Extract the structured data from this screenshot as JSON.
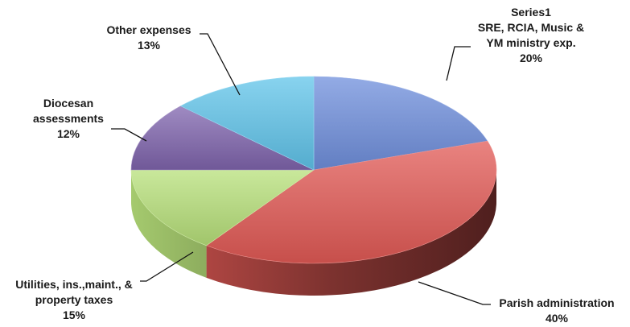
{
  "chart_data": {
    "type": "pie",
    "title": "",
    "legend": "none",
    "categories": [
      "SRE, RCIA, Music & YM ministry exp.",
      "Parish administration",
      "Utilities, ins.,maint., & property taxes",
      "Diocesan assessments",
      "Other expenses"
    ],
    "series": [
      {
        "name": "Series1",
        "values": [
          20,
          40,
          15,
          12,
          13
        ],
        "percent_labels": [
          "20%",
          "40%",
          "15%",
          "12%",
          "13%"
        ]
      }
    ],
    "colors": [
      "#6f8fdc",
      "#e25a55",
      "#b7e07a",
      "#7f64ad",
      "#60c4ea"
    ],
    "labels": [
      {
        "lines": [
          "Series1",
          "SRE, RCIA, Music &",
          "YM ministry exp."
        ],
        "pct": "20%"
      },
      {
        "lines": [
          "Parish administration"
        ],
        "pct": "40%"
      },
      {
        "lines": [
          "Utilities, ins.,maint., &",
          "property taxes"
        ],
        "pct": "15%"
      },
      {
        "lines": [
          "Diocesan",
          "assessments"
        ],
        "pct": "12%"
      },
      {
        "lines": [
          "Other expenses"
        ],
        "pct": "13%"
      }
    ]
  }
}
